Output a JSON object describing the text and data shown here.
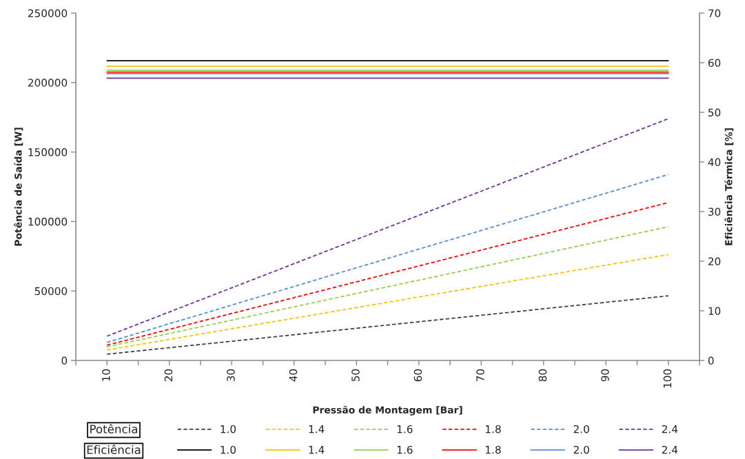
{
  "chart_data": {
    "type": "line",
    "xlabel": "Pressão de Montagem [Bar]",
    "ylabel": "Potência de Saída [W]",
    "y2label": "Eficiência Térmica [%]",
    "x": [
      10,
      100
    ],
    "xlim": [
      5,
      105
    ],
    "xticks": [
      {
        "value": 5,
        "label": null
      },
      10,
      {
        "value": 15,
        "label": null
      },
      20,
      {
        "value": 25,
        "label": null
      },
      30,
      {
        "value": 35,
        "label": null
      },
      40,
      {
        "value": 45,
        "label": null
      },
      50,
      {
        "value": 55,
        "label": null
      },
      60,
      {
        "value": 65,
        "label": null
      },
      70,
      {
        "value": 75,
        "label": null
      },
      80,
      {
        "value": 85,
        "label": null
      },
      90,
      {
        "value": 95,
        "label": null
      },
      100,
      {
        "value": 105,
        "label": null
      }
    ],
    "ylim": [
      0,
      250000
    ],
    "yticks": [
      0,
      50000,
      100000,
      150000,
      200000,
      250000
    ],
    "y2lim": [
      0,
      70
    ],
    "y2ticks": [
      0,
      10,
      20,
      30,
      40,
      50,
      60,
      70
    ],
    "grid": false,
    "legend": "bottom",
    "marker": "none",
    "annotations": [
      "Potência",
      "Eficiência"
    ],
    "series": [
      {
        "name": "1.0",
        "color": "#404040",
        "line_style": "dashed",
        "values": [
          4500,
          46500
        ]
      },
      {
        "name": "1.4",
        "color": "#ffc000",
        "line_style": "dashed",
        "values": [
          7500,
          76200
        ]
      },
      {
        "name": "1.6",
        "color": "#92d050",
        "line_style": "dashed",
        "values": [
          9800,
          96200
        ]
      },
      {
        "name": "1.8",
        "color": "#ff0000",
        "line_style": "dashed",
        "values": [
          11000,
          113600
        ]
      },
      {
        "name": "2.0",
        "color": "#558ed5",
        "line_style": "dashed",
        "values": [
          13000,
          133800
        ]
      },
      {
        "name": "2.4",
        "color": "#7030a0",
        "line_style": "dashed",
        "values": [
          17500,
          174000
        ]
      },
      {
        "name": "1.0",
        "color": "#000000",
        "line_style": "solid",
        "axis": "y2",
        "values": [
          60.4,
          60.4
        ]
      },
      {
        "name": "1.4",
        "color": "#ffc000",
        "line_style": "solid",
        "axis": "y2",
        "values": [
          59.3,
          59.3
        ]
      },
      {
        "name": "1.6",
        "color": "#92d050",
        "line_style": "solid",
        "axis": "y2",
        "values": [
          58.5,
          58.5
        ]
      },
      {
        "name": "1.8",
        "color": "#ff0000",
        "line_style": "solid",
        "axis": "y2",
        "values": [
          58.1,
          58.1
        ]
      },
      {
        "name": "2.0",
        "color": "#558ed5",
        "line_style": "solid",
        "axis": "y2",
        "values": [
          57.8,
          57.8
        ]
      },
      {
        "name": "2.4",
        "color": "#7030a0",
        "line_style": "solid",
        "axis": "y2",
        "values": [
          56.9,
          56.9
        ]
      }
    ]
  }
}
